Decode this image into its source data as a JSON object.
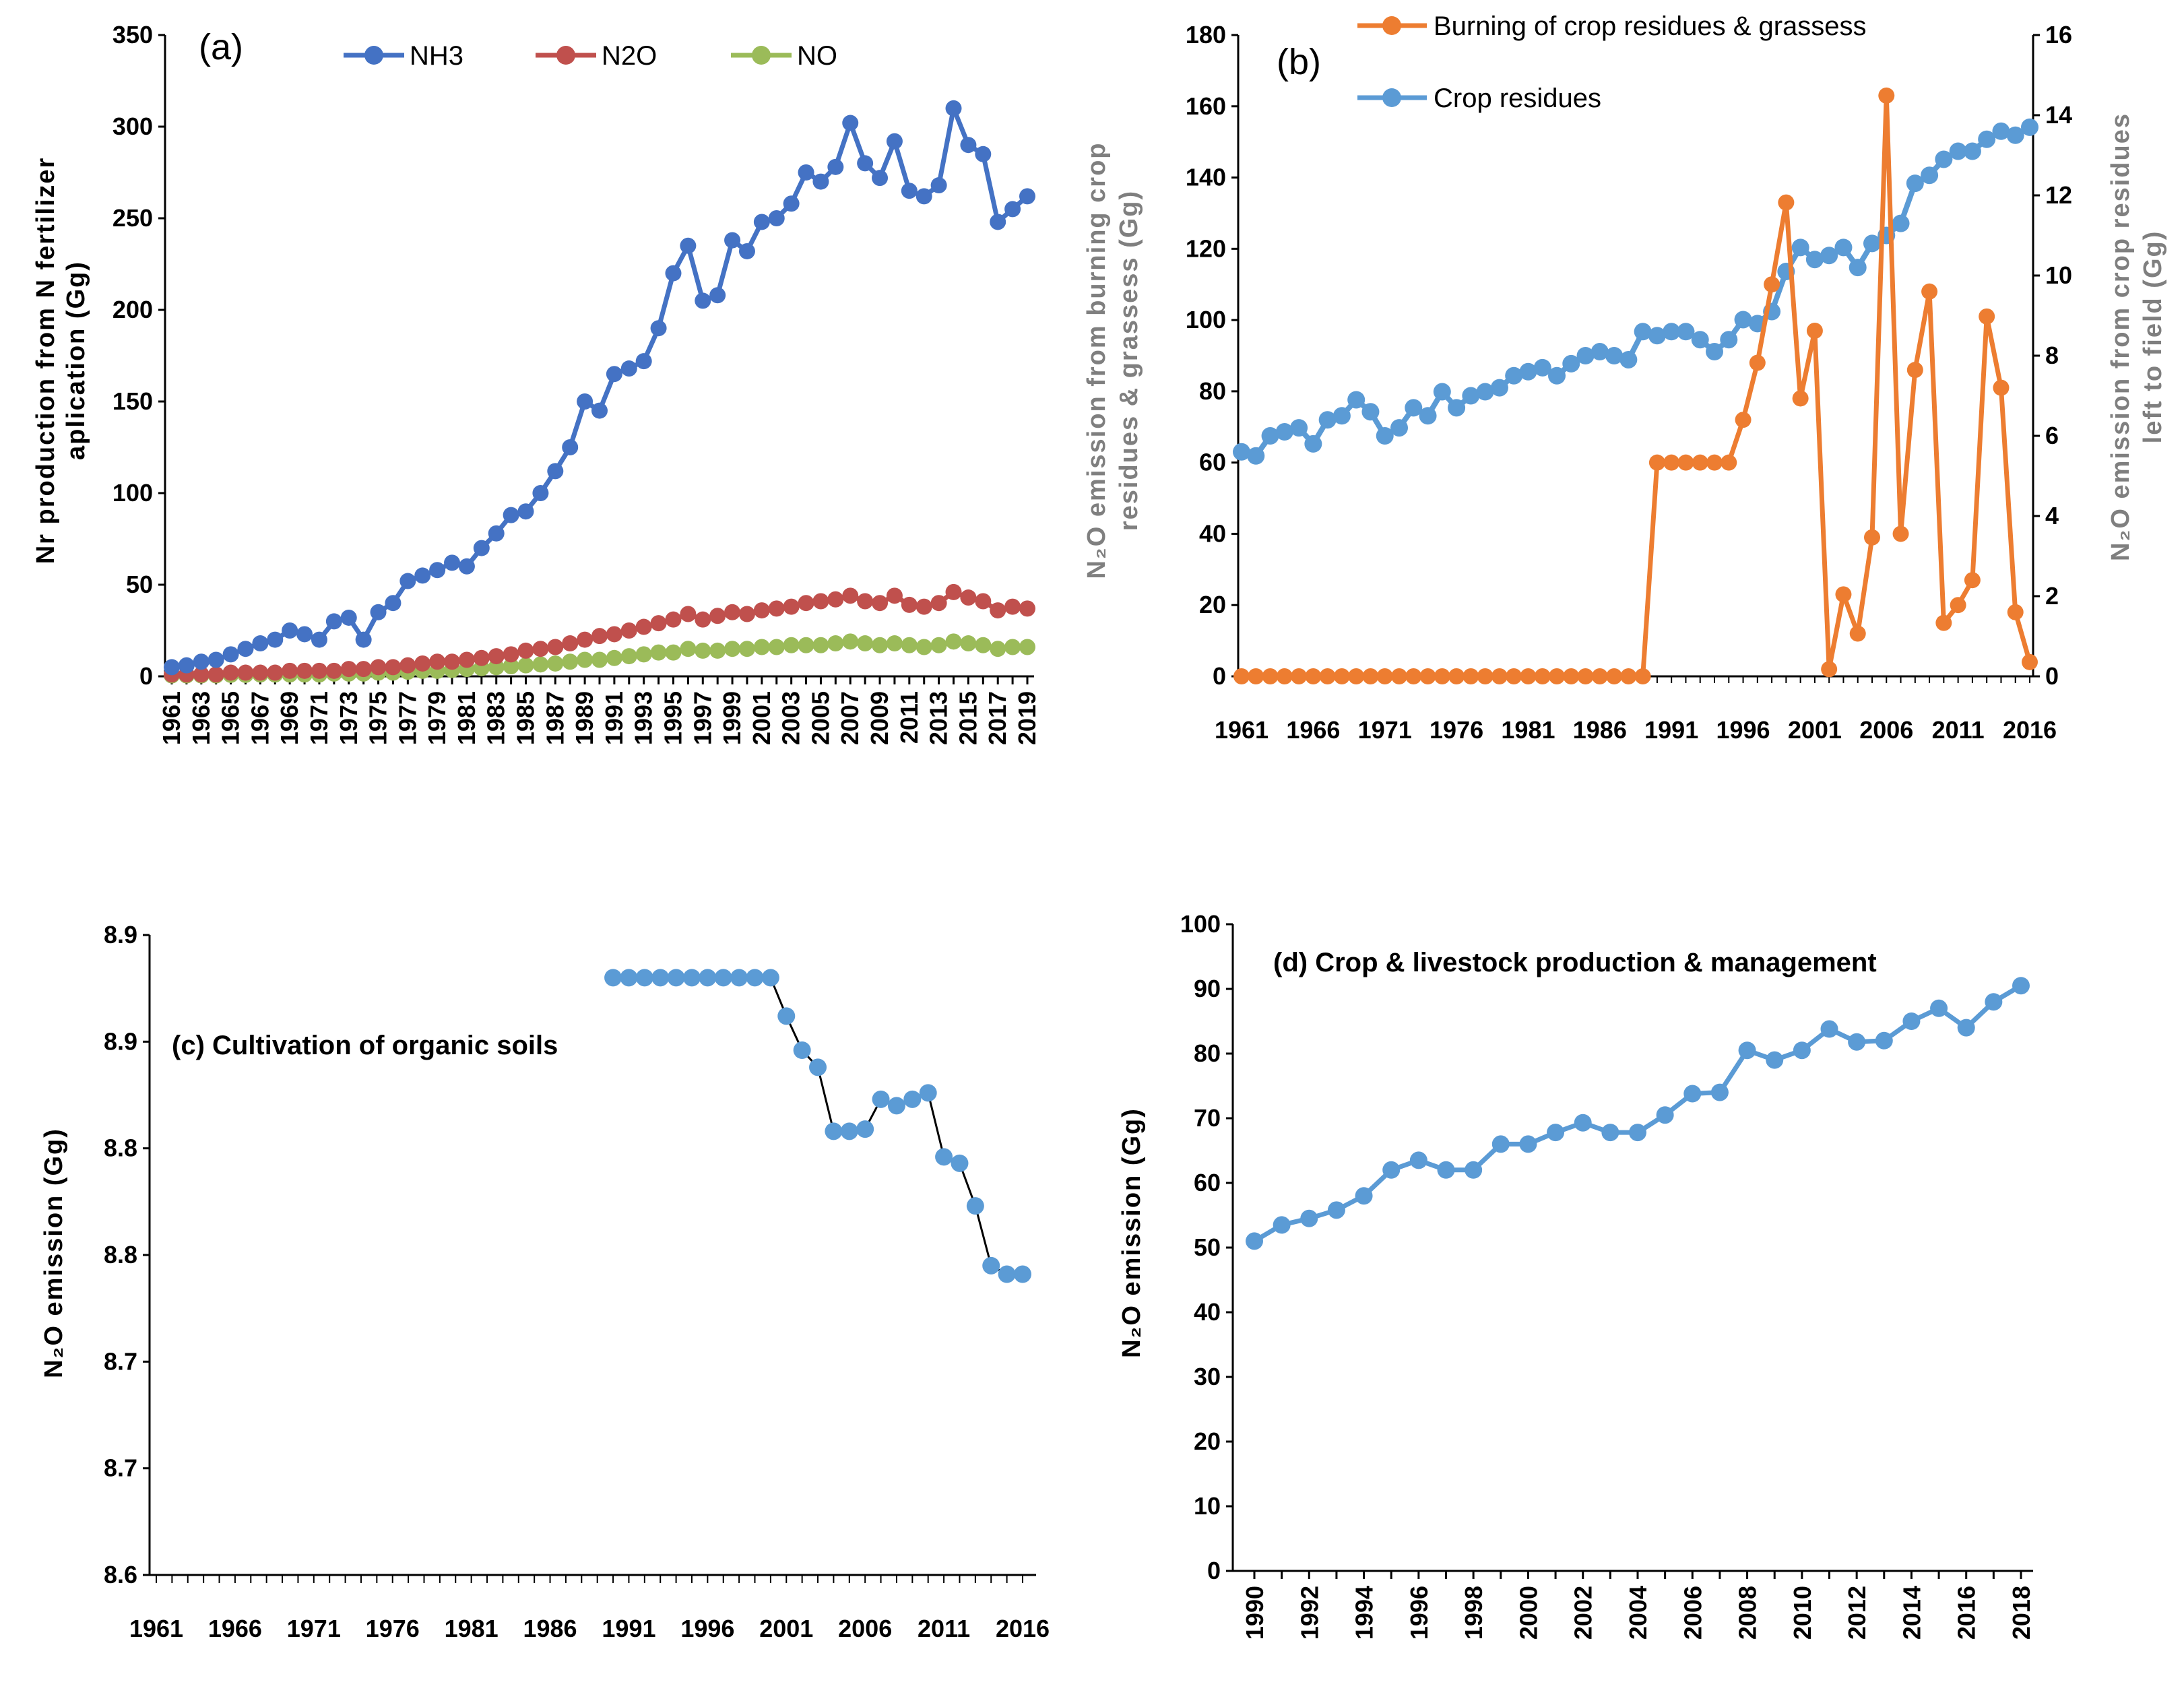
{
  "chart_data": [
    {
      "panel": "a",
      "type": "line",
      "panel_label": "(a)",
      "title": "",
      "xlabel": "",
      "ylabel": [
        "Nr production from N fertilizer",
        "aplication (Gg)"
      ],
      "x": [
        1961,
        1962,
        1963,
        1964,
        1965,
        1966,
        1967,
        1968,
        1969,
        1970,
        1971,
        1972,
        1973,
        1974,
        1975,
        1976,
        1977,
        1978,
        1979,
        1980,
        1981,
        1982,
        1983,
        1984,
        1985,
        1986,
        1987,
        1988,
        1989,
        1990,
        1991,
        1992,
        1993,
        1994,
        1995,
        1996,
        1997,
        1998,
        1999,
        2000,
        2001,
        2002,
        2003,
        2004,
        2005,
        2006,
        2007,
        2008,
        2009,
        2010,
        2011,
        2012,
        2013,
        2014,
        2015,
        2016,
        2017,
        2018,
        2019
      ],
      "x_tick_labels": [
        "1961",
        "1963",
        "1965",
        "1967",
        "1969",
        "1971",
        "1973",
        "1975",
        "1977",
        "1979",
        "1981",
        "1983",
        "1985",
        "1987",
        "1989",
        "1991",
        "1993",
        "1995",
        "1997",
        "1999",
        "2001",
        "2003",
        "2005",
        "2007",
        "2009",
        "2011",
        "2013",
        "2015",
        "2017",
        "2019"
      ],
      "ylim": [
        0,
        350
      ],
      "yticks": [
        0,
        50,
        100,
        150,
        200,
        250,
        300,
        350
      ],
      "legend_position": "top",
      "series": [
        {
          "name": "NH3",
          "color": "#4472C4",
          "values": [
            5,
            6,
            8,
            9,
            12,
            15,
            18,
            20,
            25,
            23,
            20,
            30,
            32,
            20,
            35,
            40,
            52,
            55,
            58,
            62,
            60,
            70,
            78,
            88,
            90,
            100,
            112,
            125,
            150,
            145,
            165,
            168,
            172,
            190,
            220,
            235,
            205,
            208,
            238,
            232,
            248,
            250,
            258,
            275,
            270,
            278,
            302,
            280,
            272,
            292,
            265,
            262,
            268,
            310,
            290,
            285,
            248,
            255,
            262
          ]
        },
        {
          "name": "N2O",
          "color": "#C0504D",
          "values": [
            1,
            1,
            1,
            1,
            2,
            2,
            2,
            2,
            3,
            3,
            3,
            3,
            4,
            4,
            5,
            5,
            6,
            7,
            8,
            8,
            9,
            10,
            11,
            12,
            14,
            15,
            16,
            18,
            20,
            22,
            23,
            25,
            27,
            29,
            31,
            34,
            31,
            33,
            35,
            34,
            36,
            37,
            38,
            40,
            41,
            42,
            44,
            41,
            40,
            44,
            39,
            38,
            40,
            46,
            43,
            41,
            36,
            38,
            37
          ]
        },
        {
          "name": "NO",
          "color": "#9BBB59",
          "values": [
            0.5,
            0.5,
            0.5,
            0.5,
            0.8,
            0.8,
            1,
            1,
            1,
            1,
            1,
            1.5,
            1.5,
            1.5,
            2,
            2,
            2.5,
            3,
            3,
            3.5,
            4,
            4.5,
            5,
            5.5,
            6,
            6.5,
            7,
            8,
            9,
            9,
            10,
            11,
            12,
            13,
            13,
            15,
            14,
            14,
            15,
            15,
            16,
            16,
            17,
            17,
            17,
            18,
            19,
            18,
            17,
            18,
            17,
            16,
            17,
            19,
            18,
            17,
            15,
            16,
            16
          ]
        }
      ]
    },
    {
      "panel": "b",
      "type": "line",
      "panel_label": "(b)",
      "title": "",
      "xlabel": "",
      "ylabel": [
        "N₂O emission from burning crop",
        "residues & grassess (Gg)"
      ],
      "ylabel_right": [
        "N₂O emission from crop residues",
        "left to field (Gg)"
      ],
      "x": [
        1961,
        1962,
        1963,
        1964,
        1965,
        1966,
        1967,
        1968,
        1969,
        1970,
        1971,
        1972,
        1973,
        1974,
        1975,
        1976,
        1977,
        1978,
        1979,
        1980,
        1981,
        1982,
        1983,
        1984,
        1985,
        1986,
        1987,
        1988,
        1989,
        1990,
        1991,
        1992,
        1993,
        1994,
        1995,
        1996,
        1997,
        1998,
        1999,
        2000,
        2001,
        2002,
        2003,
        2004,
        2005,
        2006,
        2007,
        2008,
        2009,
        2010,
        2011,
        2012,
        2013,
        2014,
        2015,
        2016
      ],
      "x_tick_labels": [
        "1961",
        "1966",
        "1971",
        "1976",
        "1981",
        "1986",
        "1991",
        "1996",
        "2001",
        "2006",
        "2011",
        "2016"
      ],
      "ylim": [
        0,
        180
      ],
      "yticks": [
        0,
        20,
        40,
        60,
        80,
        100,
        120,
        140,
        160,
        180
      ],
      "ylim_right": [
        0,
        16
      ],
      "yticks_right": [
        0,
        2,
        4,
        6,
        8,
        10,
        12,
        14,
        16
      ],
      "legend_position": "top",
      "series": [
        {
          "name": "Burning of crop residues & grassess",
          "axis": "left",
          "color": "#ED7D31",
          "values": [
            0,
            0,
            0,
            0,
            0,
            0,
            0,
            0,
            0,
            0,
            0,
            0,
            0,
            0,
            0,
            0,
            0,
            0,
            0,
            0,
            0,
            0,
            0,
            0,
            0,
            0,
            0,
            0,
            0,
            60,
            60,
            60,
            60,
            60,
            60,
            72,
            88,
            110,
            133,
            78,
            97,
            2,
            23,
            12,
            39,
            163,
            40,
            86,
            108,
            15,
            20,
            27,
            101,
            81,
            18,
            4
          ]
        },
        {
          "name": "Crop residues",
          "axis": "right",
          "color": "#5B9BD5",
          "values": [
            5.6,
            5.5,
            6,
            6.1,
            6.2,
            5.8,
            6.4,
            6.5,
            6.9,
            6.6,
            6,
            6.2,
            6.7,
            6.5,
            7.1,
            6.7,
            7,
            7.1,
            7.2,
            7.5,
            7.6,
            7.7,
            7.5,
            7.8,
            8,
            8.1,
            8,
            7.9,
            8.6,
            8.5,
            8.6,
            8.6,
            8.4,
            8.1,
            8.4,
            8.9,
            8.8,
            9.1,
            10.1,
            10.7,
            10.4,
            10.5,
            10.7,
            10.2,
            10.8,
            11,
            11.3,
            12.3,
            12.5,
            12.9,
            13.1,
            13.1,
            13.4,
            13.6,
            13.5,
            13.7
          ]
        }
      ]
    },
    {
      "panel": "c",
      "type": "line",
      "title": "(c) Cultivation of organic soils",
      "xlabel": "",
      "ylabel": [
        "N₂O emission (Gg)"
      ],
      "x": [
        1990,
        1991,
        1992,
        1993,
        1994,
        1995,
        1996,
        1997,
        1998,
        1999,
        2000,
        2001,
        2002,
        2003,
        2004,
        2005,
        2006,
        2007,
        2008,
        2009,
        2010,
        2011,
        2012,
        2013,
        2014,
        2015,
        2016
      ],
      "x_tick_labels": [
        "1961",
        "1966",
        "1971",
        "1976",
        "1981",
        "1986",
        "1991",
        "1996",
        "2001",
        "2006",
        "2011",
        "2016"
      ],
      "x_range": [
        1961,
        2016
      ],
      "ylim": [
        8.6,
        8.9
      ],
      "ytick_values": [
        8.6,
        8.65,
        8.7,
        8.75,
        8.8,
        8.85,
        8.9
      ],
      "ytick_labels": [
        "8.6",
        "8.7",
        "8.7",
        "8.8",
        "8.8",
        "8.9",
        "8.9"
      ],
      "series": [
        {
          "name": "Cultivation of organic soils",
          "color": "#5B9BD5",
          "line_color": "#000000",
          "values": [
            8.88,
            8.88,
            8.88,
            8.88,
            8.88,
            8.88,
            8.88,
            8.88,
            8.88,
            8.88,
            8.88,
            8.862,
            8.846,
            8.838,
            8.808,
            8.808,
            8.809,
            8.823,
            8.82,
            8.823,
            8.826,
            8.796,
            8.793,
            8.773,
            8.745,
            8.741,
            8.741
          ]
        }
      ]
    },
    {
      "panel": "d",
      "type": "line",
      "title": "(d)    Crop & livestock production & management",
      "xlabel": "",
      "ylabel": [
        "N₂O emission (Gg)"
      ],
      "x": [
        1990,
        1991,
        1992,
        1993,
        1994,
        1995,
        1996,
        1997,
        1998,
        1999,
        2000,
        2001,
        2002,
        2003,
        2004,
        2005,
        2006,
        2007,
        2008,
        2009,
        2010,
        2011,
        2012,
        2013,
        2014,
        2015,
        2016,
        2017,
        2018
      ],
      "x_tick_labels": [
        "1990",
        "1992",
        "1994",
        "1996",
        "1998",
        "2000",
        "2002",
        "2004",
        "2006",
        "2008",
        "2010",
        "2012",
        "2014",
        "2016",
        "2018"
      ],
      "ylim": [
        0,
        100
      ],
      "yticks": [
        0,
        10,
        20,
        30,
        40,
        50,
        60,
        70,
        80,
        90,
        100
      ],
      "series": [
        {
          "name": "Crop & livestock production & management",
          "color": "#5B9BD5",
          "values": [
            51,
            53.5,
            54.5,
            55.8,
            58,
            62,
            63.5,
            62,
            62,
            66,
            66,
            67.8,
            69.3,
            67.8,
            67.8,
            70.5,
            73.8,
            74,
            80.5,
            79,
            80.5,
            83.8,
            81.8,
            82,
            85,
            87,
            84,
            88,
            90.5
          ]
        }
      ]
    }
  ]
}
